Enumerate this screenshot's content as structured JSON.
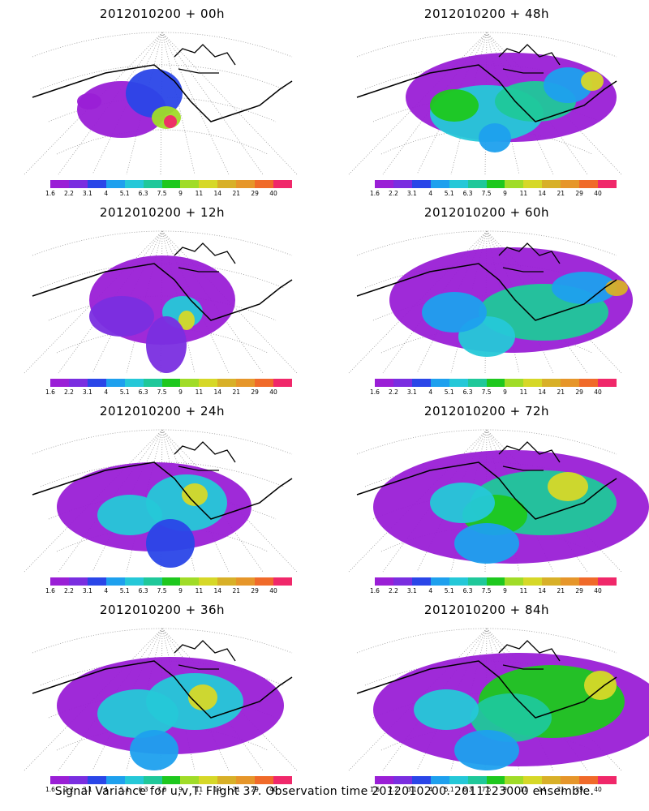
{
  "panels": [
    {
      "title": "2012010200 + 00h"
    },
    {
      "title": "2012010200 + 48h"
    },
    {
      "title": "2012010200 + 12h"
    },
    {
      "title": "2012010200 + 60h"
    },
    {
      "title": "2012010200 + 24h"
    },
    {
      "title": "2012010200 + 72h"
    },
    {
      "title": "2012010200 + 36h"
    },
    {
      "title": "2012010200 + 84h"
    }
  ],
  "colorbar": {
    "colors": [
      "#9a1fd6",
      "#7a2ee0",
      "#2a46e8",
      "#1ea0ee",
      "#25c8d8",
      "#1fc89a",
      "#1ec81e",
      "#a0dc28",
      "#d6d828",
      "#d8b028",
      "#e6962a",
      "#f06a2a",
      "#f0286a"
    ],
    "labels": [
      "1.6",
      "2.2",
      "3.1",
      "4",
      "5.1",
      "6.3",
      "7.5",
      "9",
      "11",
      "14",
      "21",
      "29",
      "40"
    ]
  },
  "caption": "Signal Variance for u,v,T. Flight 37. Observation time 2012010200. 2011123000 ensemble."
}
